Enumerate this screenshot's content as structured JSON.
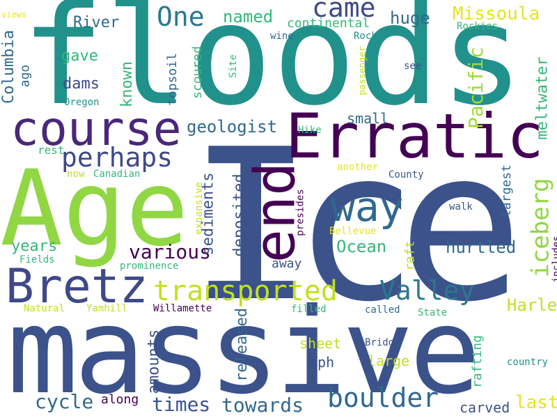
{
  "palette": {
    "background": "#ffffff",
    "dark-purple": "#440154",
    "indigo": "#3b528b",
    "slate-blue": "#31688e",
    "teal": "#21918c",
    "green-teal": "#35b779",
    "lime": "#90d743",
    "yellow": "#e6e41f"
  },
  "words": [
    "floods",
    "Ice",
    "massive",
    "Age",
    "Erratic",
    "course",
    "end",
    "Bretz",
    "way",
    "transported",
    "boulder",
    "perhaps",
    "Valley",
    "iceberg",
    "came",
    "One",
    "Missoula",
    "various",
    "Pacific",
    "Ocean",
    "hurtled",
    "Harlen",
    "geologist",
    "meltwater",
    "towards",
    "times",
    "cycle",
    "last",
    "deposited",
    "sediments",
    "amounts",
    "released",
    "huge",
    "named",
    "River",
    "known",
    "years",
    "Columbia",
    "topsoil",
    "scoured",
    "dams",
    "gave",
    "continental",
    "small",
    "largest",
    "raft",
    "rafting",
    "sheet",
    "mph",
    "large",
    "carved",
    "along",
    "away",
    "ago",
    "Rockies",
    "Rock",
    "wine",
    "views",
    "Oregon",
    "Site",
    "passenger",
    "see",
    "Hike",
    "rest",
    "another",
    "Canadian",
    "now",
    "County",
    "walk",
    "presides",
    "expansive",
    "Bellevue",
    "includes",
    "Fields",
    "prominence",
    "Natural",
    "Yamhill",
    "Willamette",
    "filled",
    "called",
    "State",
    "Bridge",
    "country"
  ]
}
